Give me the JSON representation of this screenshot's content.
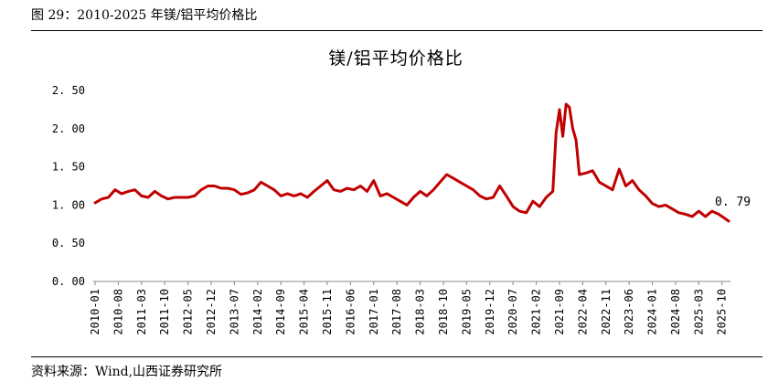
{
  "figure": {
    "caption": "图 29：2010-2025 年镁/铝平均价格比",
    "source": "资料来源：Wind,山西证券研究所"
  },
  "chart_data": {
    "type": "line",
    "title": "镁/铝平均价格比",
    "xlabel": "",
    "ylabel": "",
    "ylim": [
      0,
      2.5
    ],
    "y_ticks": [
      "0. 00",
      "0. 50",
      "1. 00",
      "1. 50",
      "2. 00",
      "2. 50"
    ],
    "grid": false,
    "legend": "none",
    "color": "#c00000",
    "x_tick_labels": [
      "2010-01",
      "2010-08",
      "2011-03",
      "2011-10",
      "2012-05",
      "2012-12",
      "2013-07",
      "2014-02",
      "2014-09",
      "2015-04",
      "2015-11",
      "2016-06",
      "2017-01",
      "2017-08",
      "2018-03",
      "2018-10",
      "2019-05",
      "2019-12",
      "2020-07",
      "2021-02",
      "2021-09",
      "2022-04",
      "2022-11",
      "2023-06",
      "2024-01",
      "2024-08",
      "2025-03",
      "2025-10"
    ],
    "end_label": "0. 79",
    "series": [
      {
        "x": [
          "2010-01",
          "2010-03",
          "2010-05",
          "2010-07",
          "2010-09",
          "2010-11",
          "2011-01",
          "2011-03",
          "2011-05",
          "2011-07",
          "2011-09",
          "2011-11",
          "2012-01",
          "2012-03",
          "2012-05",
          "2012-07",
          "2012-09",
          "2012-11",
          "2013-01",
          "2013-03",
          "2013-05",
          "2013-07",
          "2013-09",
          "2013-11",
          "2014-01",
          "2014-03",
          "2014-05",
          "2014-07",
          "2014-09",
          "2014-11",
          "2015-01",
          "2015-03",
          "2015-05",
          "2015-07",
          "2015-09",
          "2015-11",
          "2016-01",
          "2016-03",
          "2016-05",
          "2016-07",
          "2016-09",
          "2016-11",
          "2017-01",
          "2017-03",
          "2017-05",
          "2017-07",
          "2017-09",
          "2017-11",
          "2018-01",
          "2018-03",
          "2018-05",
          "2018-07",
          "2018-09",
          "2018-11",
          "2019-01",
          "2019-03",
          "2019-05",
          "2019-07",
          "2019-09",
          "2019-11",
          "2020-01",
          "2020-03",
          "2020-05",
          "2020-07",
          "2020-09",
          "2020-11",
          "2021-01",
          "2021-03",
          "2021-05",
          "2021-07",
          "2021-08",
          "2021-09",
          "2021-10",
          "2021-11",
          "2021-12",
          "2022-01",
          "2022-02",
          "2022-03",
          "2022-05",
          "2022-07",
          "2022-09",
          "2022-11",
          "2023-01",
          "2023-03",
          "2023-05",
          "2023-07",
          "2023-09",
          "2023-11",
          "2024-01",
          "2024-03",
          "2024-05",
          "2024-07",
          "2024-09",
          "2024-11",
          "2025-01",
          "2025-03",
          "2025-05",
          "2025-07",
          "2025-09",
          "2025-10",
          "2025-11",
          "2025-12"
        ],
        "values": [
          1.03,
          1.08,
          1.1,
          1.2,
          1.15,
          1.18,
          1.2,
          1.12,
          1.1,
          1.18,
          1.12,
          1.08,
          1.1,
          1.1,
          1.1,
          1.12,
          1.2,
          1.25,
          1.25,
          1.22,
          1.22,
          1.2,
          1.14,
          1.16,
          1.2,
          1.3,
          1.25,
          1.2,
          1.12,
          1.15,
          1.12,
          1.15,
          1.1,
          1.18,
          1.25,
          1.32,
          1.2,
          1.18,
          1.22,
          1.2,
          1.25,
          1.18,
          1.32,
          1.12,
          1.15,
          1.1,
          1.05,
          1.0,
          1.1,
          1.18,
          1.12,
          1.2,
          1.3,
          1.4,
          1.35,
          1.3,
          1.25,
          1.2,
          1.12,
          1.08,
          1.1,
          1.25,
          1.12,
          0.98,
          0.92,
          0.9,
          1.05,
          0.98,
          1.1,
          1.18,
          1.95,
          2.25,
          1.9,
          2.32,
          2.28,
          2.0,
          1.85,
          1.4,
          1.42,
          1.45,
          1.3,
          1.25,
          1.2,
          1.47,
          1.25,
          1.32,
          1.2,
          1.12,
          1.02,
          0.98,
          1.0,
          0.95,
          0.9,
          0.88,
          0.85,
          0.92,
          0.85,
          0.92,
          0.88,
          0.85,
          0.82,
          0.79
        ]
      }
    ]
  }
}
